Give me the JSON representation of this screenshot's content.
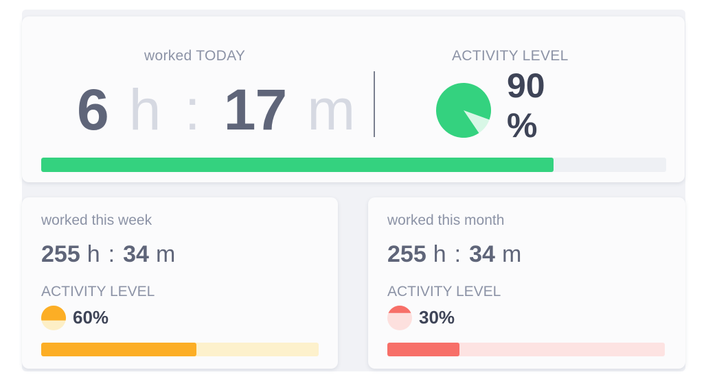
{
  "today": {
    "label": "worked TODAY",
    "hours": "6",
    "hours_unit": "h",
    "separator": ":",
    "minutes": "17",
    "minutes_unit": "m",
    "activity_label": "ACTIVITY LEVEL",
    "activity_value": "90",
    "activity_unit": "%",
    "activity_fraction": 0.9,
    "progress_fraction": 0.82,
    "colors": {
      "fill": "#34d27f",
      "light": "#d8f7e6",
      "track": "#eef0f4"
    }
  },
  "week": {
    "label": "worked this week",
    "hours": "255",
    "hours_unit": "h",
    "separator": ":",
    "minutes": "34",
    "minutes_unit": "m",
    "activity_label": "ACTIVITY LEVEL",
    "activity_text": "60%",
    "activity_fraction": 0.6,
    "progress_fraction": 0.56,
    "colors": {
      "fill": "#fcae25",
      "light": "#fdefc6",
      "track": "#fdf1cc"
    }
  },
  "month": {
    "label": "worked this month",
    "hours": "255",
    "hours_unit": "h",
    "separator": ":",
    "minutes": "34",
    "minutes_unit": "m",
    "activity_label": "ACTIVITY LEVEL",
    "activity_text": "30%",
    "activity_fraction": 0.3,
    "progress_fraction": 0.26,
    "colors": {
      "fill": "#f76f68",
      "light": "#fde0de",
      "track": "#fde3e2"
    }
  }
}
